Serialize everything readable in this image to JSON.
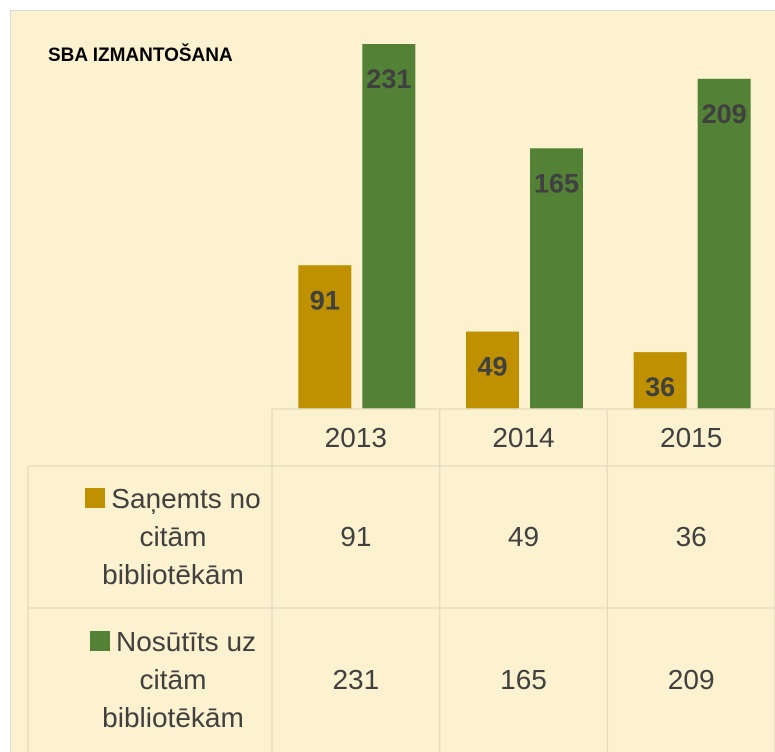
{
  "chart_data": {
    "type": "bar",
    "title": "SBA IZMANTOŠANA",
    "categories": [
      "2013",
      "2014",
      "2015"
    ],
    "series": [
      {
        "name": "Saņemts no citām bibliotēkām",
        "color": "#bf9000",
        "values": [
          91,
          49,
          36
        ]
      },
      {
        "name": "Nosūtīts uz citām bibliotēkām",
        "color": "#538135",
        "values": [
          231,
          165,
          209
        ]
      }
    ],
    "ylim": [
      0,
      240
    ]
  }
}
